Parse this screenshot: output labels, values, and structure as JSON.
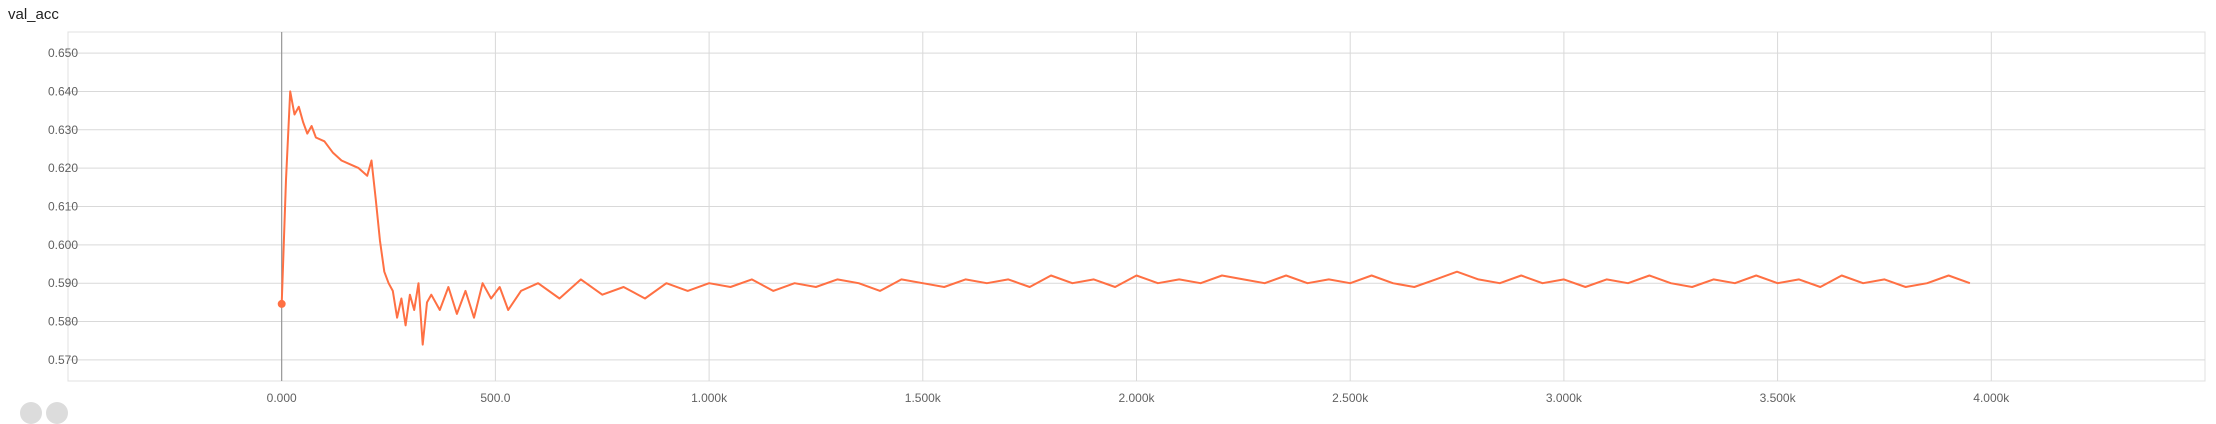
{
  "chart_data": {
    "type": "line",
    "title": "val_acc",
    "xlim": [
      -500,
      4500
    ],
    "ylim": [
      0.5645,
      0.6555
    ],
    "x_ticks": [
      0,
      500,
      1000,
      1500,
      2000,
      2500,
      3000,
      3500,
      4000
    ],
    "x_tick_labels": [
      "0.000",
      "500.0",
      "1.000k",
      "1.500k",
      "2.000k",
      "2.500k",
      "3.000k",
      "3.500k",
      "4.000k"
    ],
    "y_ticks": [
      0.57,
      0.58,
      0.59,
      0.6,
      0.61,
      0.62,
      0.63,
      0.64,
      0.65
    ],
    "y_tick_labels": [
      "0.570",
      "0.580",
      "0.590",
      "0.600",
      "0.610",
      "0.620",
      "0.630",
      "0.640",
      "0.650"
    ],
    "grid": true,
    "series": [
      {
        "color": "#ff7043",
        "start_marker": {
          "x": 0,
          "y": 0.5846
        },
        "x": [
          0,
          10,
          20,
          30,
          40,
          50,
          60,
          70,
          80,
          100,
          120,
          140,
          160,
          180,
          200,
          210,
          220,
          230,
          240,
          250,
          260,
          270,
          280,
          290,
          300,
          310,
          320,
          330,
          340,
          350,
          370,
          390,
          410,
          430,
          450,
          470,
          490,
          510,
          530,
          560,
          600,
          650,
          700,
          750,
          800,
          850,
          900,
          950,
          1000,
          1050,
          1100,
          1150,
          1200,
          1250,
          1300,
          1350,
          1400,
          1450,
          1500,
          1550,
          1600,
          1650,
          1700,
          1750,
          1800,
          1850,
          1900,
          1950,
          2000,
          2050,
          2100,
          2150,
          2200,
          2250,
          2300,
          2350,
          2400,
          2450,
          2500,
          2550,
          2600,
          2650,
          2700,
          2750,
          2800,
          2850,
          2900,
          2950,
          3000,
          3050,
          3100,
          3150,
          3200,
          3250,
          3300,
          3350,
          3400,
          3450,
          3500,
          3550,
          3600,
          3650,
          3700,
          3750,
          3800,
          3850,
          3900,
          3950
        ],
        "y": [
          0.5846,
          0.617,
          0.64,
          0.634,
          0.636,
          0.632,
          0.629,
          0.631,
          0.628,
          0.627,
          0.624,
          0.622,
          0.621,
          0.62,
          0.618,
          0.622,
          0.612,
          0.601,
          0.593,
          0.59,
          0.588,
          0.581,
          0.586,
          0.579,
          0.587,
          0.583,
          0.59,
          0.574,
          0.585,
          0.587,
          0.583,
          0.589,
          0.582,
          0.588,
          0.581,
          0.59,
          0.586,
          0.589,
          0.583,
          0.588,
          0.59,
          0.586,
          0.591,
          0.587,
          0.589,
          0.586,
          0.59,
          0.588,
          0.59,
          0.589,
          0.591,
          0.588,
          0.59,
          0.589,
          0.591,
          0.59,
          0.588,
          0.591,
          0.59,
          0.589,
          0.591,
          0.59,
          0.591,
          0.589,
          0.592,
          0.59,
          0.591,
          0.589,
          0.592,
          0.59,
          0.591,
          0.59,
          0.592,
          0.591,
          0.59,
          0.592,
          0.59,
          0.591,
          0.59,
          0.592,
          0.59,
          0.589,
          0.591,
          0.593,
          0.591,
          0.59,
          0.592,
          0.59,
          0.591,
          0.589,
          0.591,
          0.59,
          0.592,
          0.59,
          0.589,
          0.591,
          0.59,
          0.592,
          0.59,
          0.591,
          0.589,
          0.592,
          0.59,
          0.591,
          0.589,
          0.59,
          0.592,
          0.59
        ]
      }
    ]
  }
}
